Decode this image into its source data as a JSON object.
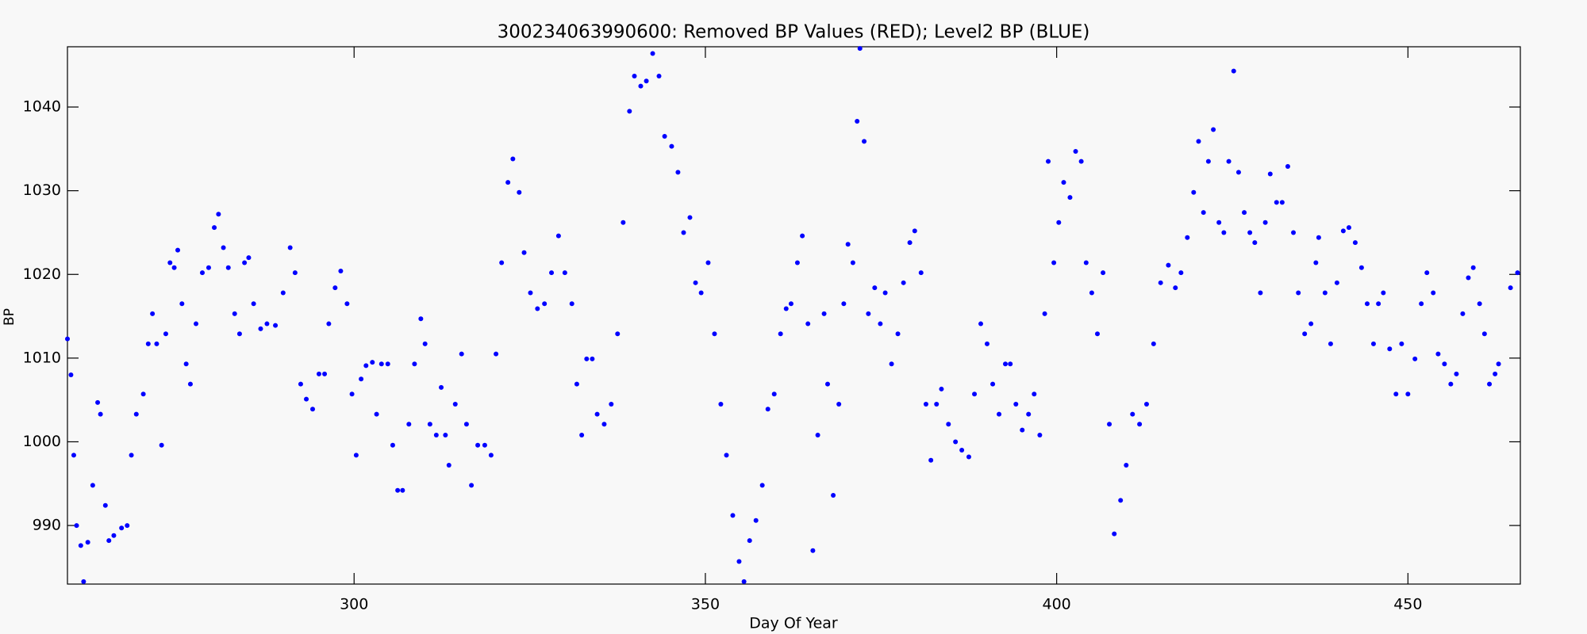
{
  "chart_data": {
    "type": "scatter",
    "title": "300234063990600: Removed BP Values (RED); Level2 BP (BLUE)",
    "xlabel": "Day Of Year",
    "ylabel": "BP",
    "xlim": [
      259.2,
      466
    ],
    "ylim": [
      983,
      1047.2
    ],
    "xticks": [
      300,
      350,
      400,
      450
    ],
    "yticks": [
      990,
      1000,
      1010,
      1020,
      1030,
      1040
    ],
    "series": [
      {
        "color": "#0000ff",
        "x": [
          259.2,
          259.7,
          260.1,
          260.5,
          261.1,
          261.5,
          262.1,
          262.8,
          263.5,
          263.9,
          264.6,
          265.1,
          265.8,
          266.9,
          267.7,
          268.3,
          269.0,
          270.0,
          270.7,
          271.3,
          271.9,
          272.6,
          273.2,
          273.8,
          274.4,
          274.9,
          275.5,
          276.1,
          276.7,
          277.5,
          278.4,
          279.3,
          280.1,
          280.7,
          281.4,
          282.1,
          283.0,
          283.7,
          284.4,
          285.0,
          285.7,
          286.7,
          287.6,
          288.8,
          289.9,
          290.9,
          291.6,
          292.4,
          293.2,
          294.1,
          295.0,
          295.8,
          296.4,
          297.3,
          298.1,
          299.0,
          299.7,
          300.3,
          301.0,
          301.7,
          302.6,
          303.2,
          303.9,
          304.8,
          305.5,
          306.2,
          306.9,
          307.8,
          308.6,
          309.5,
          310.1,
          310.8,
          311.7,
          312.4,
          313.0,
          313.5,
          314.4,
          315.3,
          316.0,
          316.7,
          317.6,
          318.6,
          319.5,
          320.2,
          321.0,
          321.9,
          322.6,
          323.5,
          324.2,
          325.1,
          326.1,
          327.1,
          328.1,
          329.1,
          330.0,
          331.0,
          331.7,
          332.4,
          333.1,
          333.9,
          334.6,
          335.6,
          336.6,
          337.5,
          338.3,
          339.2,
          339.9,
          340.8,
          341.6,
          342.5,
          343.4,
          344.2,
          345.2,
          346.1,
          346.9,
          347.8,
          348.6,
          349.4,
          350.4,
          351.3,
          352.2,
          353.0,
          353.9,
          354.8,
          355.5,
          356.3,
          357.2,
          358.1,
          358.9,
          359.8,
          360.7,
          361.5,
          362.2,
          363.1,
          363.8,
          364.6,
          365.3,
          366.0,
          366.9,
          367.4,
          368.2,
          369.0,
          369.7,
          370.3,
          371.0,
          371.6,
          372.0,
          372.6,
          373.2,
          374.1,
          374.9,
          375.6,
          376.5,
          377.4,
          378.2,
          379.1,
          379.8,
          380.7,
          381.4,
          382.1,
          382.9,
          383.6,
          384.6,
          385.6,
          386.5,
          387.5,
          388.3,
          389.2,
          390.1,
          390.9,
          391.8,
          392.7,
          393.4,
          394.2,
          395.1,
          396.0,
          396.8,
          397.6,
          398.3,
          398.8,
          399.6,
          400.3,
          401.0,
          401.9,
          402.7,
          403.5,
          404.2,
          405.0,
          405.8,
          406.6,
          407.5,
          408.2,
          409.1,
          409.9,
          410.8,
          411.8,
          412.8,
          413.8,
          414.8,
          415.9,
          416.9,
          417.7,
          418.6,
          419.5,
          420.2,
          420.9,
          421.6,
          422.3,
          423.1,
          423.8,
          424.5,
          425.2,
          425.9,
          426.7,
          427.5,
          428.2,
          429.0,
          429.7,
          430.4,
          431.3,
          432.1,
          432.9,
          433.7,
          434.4,
          435.3,
          436.2,
          436.9,
          437.3,
          438.2,
          439.0,
          439.9,
          440.8,
          441.6,
          442.5,
          443.4,
          444.2,
          445.1,
          445.8,
          446.5,
          447.4,
          448.3,
          449.1,
          450.0,
          451.0,
          451.9,
          452.7,
          453.6,
          454.3,
          455.2,
          456.1,
          456.9,
          457.8,
          458.6,
          459.3,
          460.2,
          460.9,
          461.6,
          462.4,
          462.9,
          464.6,
          465.6
        ],
        "values": [
          1012.3,
          1008,
          998.4,
          990,
          987.6,
          983.3,
          988,
          994.8,
          1004.7,
          1003.3,
          992.4,
          988.2,
          988.8,
          989.7,
          990,
          998.4,
          1003.3,
          1005.7,
          1011.7,
          1015.3,
          1011.7,
          999.6,
          1012.9,
          1021.4,
          1020.8,
          1022.9,
          1016.5,
          1009.3,
          1006.9,
          1014.1,
          1020.2,
          1020.8,
          1025.6,
          1027.2,
          1023.2,
          1020.8,
          1015.3,
          1012.9,
          1021.4,
          1022,
          1016.5,
          1013.5,
          1014.1,
          1013.9,
          1017.8,
          1023.2,
          1020.2,
          1006.9,
          1005.1,
          1003.9,
          1008.1,
          1008.1,
          1014.1,
          1018.4,
          1020.4,
          1016.5,
          1005.7,
          998.4,
          1007.5,
          1009.1,
          1009.5,
          1003.3,
          1009.3,
          1009.3,
          999.6,
          994.2,
          994.2,
          1002.1,
          1009.3,
          1014.7,
          1011.7,
          1002.1,
          1000.8,
          1006.5,
          1000.8,
          997.2,
          1004.5,
          1010.5,
          1002.1,
          994.8,
          999.6,
          999.6,
          998.4,
          1010.5,
          1021.4,
          1031,
          1033.8,
          1029.8,
          1022.6,
          1017.8,
          1015.9,
          1016.5,
          1020.2,
          1024.6,
          1020.2,
          1016.5,
          1006.9,
          1000.8,
          1009.9,
          1009.9,
          1003.3,
          1002.1,
          1004.5,
          1012.9,
          1026.2,
          1039.5,
          1043.7,
          1042.5,
          1043.1,
          1046.4,
          1043.7,
          1036.5,
          1035.3,
          1032.2,
          1025,
          1026.8,
          1019,
          1017.8,
          1021.4,
          1012.9,
          1004.5,
          998.4,
          991.2,
          985.7,
          983.3,
          988.2,
          990.6,
          994.8,
          1003.9,
          1005.7,
          1012.9,
          1015.9,
          1016.5,
          1021.4,
          1024.6,
          1014.1,
          987,
          1000.8,
          1015.3,
          1006.9,
          993.6,
          1004.5,
          1016.5,
          1023.6,
          1021.4,
          1038.3,
          1047,
          1035.9,
          1015.3,
          1018.4,
          1014.1,
          1017.8,
          1009.3,
          1012.9,
          1019,
          1023.8,
          1025.2,
          1020.2,
          1004.5,
          997.8,
          1004.5,
          1006.3,
          1002.1,
          1000,
          999,
          998.2,
          1005.7,
          1014.1,
          1011.7,
          1006.9,
          1003.3,
          1009.3,
          1009.3,
          1004.5,
          1001.4,
          1003.3,
          1005.7,
          1000.8,
          1015.3,
          1033.5,
          1021.4,
          1026.2,
          1031,
          1029.2,
          1034.7,
          1033.5,
          1021.4,
          1017.8,
          1012.9,
          1020.2,
          1002.1,
          989,
          993,
          997.2,
          1003.3,
          1002.1,
          1004.5,
          1011.7,
          1019,
          1021.1,
          1018.4,
          1020.2,
          1024.4,
          1029.8,
          1035.9,
          1027.4,
          1033.5,
          1037.3,
          1026.2,
          1025,
          1033.5,
          1044.3,
          1032.2,
          1027.4,
          1025,
          1023.8,
          1017.8,
          1026.2,
          1032,
          1028.6,
          1028.6,
          1032.9,
          1025,
          1017.8,
          1012.9,
          1014.1,
          1021.4,
          1024.4,
          1017.8,
          1011.7,
          1019,
          1025.2,
          1025.6,
          1023.8,
          1020.8,
          1016.5,
          1011.7,
          1016.5,
          1017.8,
          1011.1,
          1005.7,
          1011.7,
          1005.7,
          1009.9,
          1016.5,
          1020.2,
          1017.8,
          1010.5,
          1009.3,
          1006.9,
          1008.1,
          1015.3,
          1019.6,
          1020.8,
          1016.5,
          1012.9,
          1006.9,
          1008.1,
          1009.3,
          1018.4,
          1020.2
        ]
      }
    ]
  }
}
